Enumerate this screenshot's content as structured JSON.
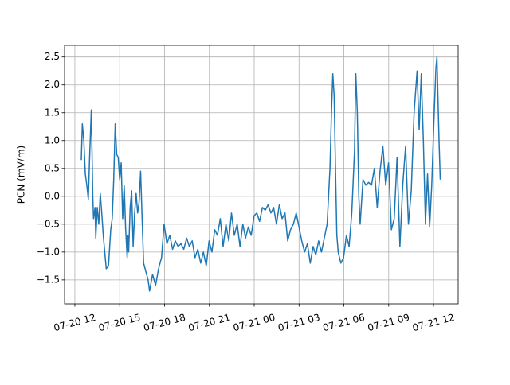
{
  "chart_data": {
    "type": "line",
    "y_label": "PCN (mV/m)",
    "color": "#1f77b4",
    "grid": true,
    "xlim": [
      11.31,
      37.65
    ],
    "ylim": [
      -1.93,
      2.71
    ],
    "xticks": [
      {
        "value": 12,
        "label": "07-20 12"
      },
      {
        "value": 15,
        "label": "07-20 15"
      },
      {
        "value": 18,
        "label": "07-20 18"
      },
      {
        "value": 21,
        "label": "07-20 21"
      },
      {
        "value": 24,
        "label": "07-21 00"
      },
      {
        "value": 27,
        "label": "07-21 03"
      },
      {
        "value": 30,
        "label": "07-21 06"
      },
      {
        "value": 33,
        "label": "07-21 09"
      },
      {
        "value": 36,
        "label": "07-21 12"
      }
    ],
    "yticks": [
      {
        "value": -1.5,
        "label": "−1.5"
      },
      {
        "value": -1.0,
        "label": "−1.0"
      },
      {
        "value": -0.5,
        "label": "−0.5"
      },
      {
        "value": 0,
        "label": "0.0"
      },
      0.5,
      {
        "value": 1.0,
        "label": "1.0"
      },
      1.5,
      {
        "value": 2.0,
        "label": "2.0"
      },
      2.5
    ],
    "x": [
      12.43,
      12.5,
      12.6,
      12.7,
      12.8,
      12.9,
      13.0,
      13.1,
      13.2,
      13.25,
      13.35,
      13.4,
      13.5,
      13.6,
      13.7,
      13.8,
      13.9,
      14.1,
      14.25,
      14.4,
      14.5,
      14.6,
      14.7,
      14.8,
      14.9,
      15.0,
      15.1,
      15.2,
      15.3,
      15.4,
      15.5,
      15.55,
      15.6,
      15.7,
      15.8,
      15.9,
      16.0,
      16.1,
      16.2,
      16.3,
      16.4,
      16.5,
      16.6,
      16.7,
      16.9,
      17.0,
      17.2,
      17.4,
      17.6,
      17.8,
      17.97,
      18.16,
      18.35,
      18.54,
      18.72,
      18.91,
      19.1,
      19.29,
      19.48,
      19.66,
      19.85,
      20.04,
      20.23,
      20.42,
      20.6,
      20.79,
      20.98,
      21.17,
      21.36,
      21.54,
      21.73,
      21.92,
      22.11,
      22.3,
      22.48,
      22.67,
      22.86,
      23.05,
      23.24,
      23.42,
      23.61,
      23.8,
      23.99,
      24.18,
      24.36,
      24.55,
      24.74,
      24.93,
      25.12,
      25.3,
      25.49,
      25.68,
      25.87,
      26.06,
      26.24,
      26.43,
      26.62,
      26.81,
      27.0,
      27.18,
      27.37,
      27.56,
      27.75,
      27.94,
      28.12,
      28.31,
      28.5,
      28.69,
      28.88,
      29.07,
      29.17,
      29.26,
      29.35,
      29.44,
      29.53,
      29.62,
      29.8,
      29.98,
      30.17,
      30.35,
      30.53,
      30.71,
      30.8,
      30.9,
      31.0,
      31.09,
      31.28,
      31.47,
      31.66,
      31.85,
      32.04,
      32.23,
      32.42,
      32.61,
      32.8,
      32.99,
      33.18,
      33.37,
      33.56,
      33.75,
      33.94,
      34.13,
      34.32,
      34.51,
      34.7,
      34.9,
      35.04,
      35.18,
      35.32,
      35.46,
      35.6,
      35.74,
      35.88,
      36.02,
      36.09,
      36.16,
      36.23,
      36.37,
      36.45
    ],
    "values": [
      0.65,
      1.3,
      1.0,
      0.4,
      0.2,
      -0.05,
      0.8,
      1.55,
      0.0,
      -0.4,
      -0.2,
      -0.75,
      -0.2,
      -0.5,
      0.05,
      -0.3,
      -0.7,
      -1.3,
      -1.25,
      -0.6,
      -0.4,
      0.3,
      1.3,
      0.75,
      0.7,
      0.3,
      0.6,
      -0.4,
      0.2,
      -0.6,
      -1.1,
      -0.7,
      -1.0,
      -0.2,
      0.1,
      -0.9,
      -0.3,
      0.05,
      -0.3,
      -0.1,
      0.45,
      -0.4,
      -1.2,
      -1.3,
      -1.5,
      -1.7,
      -1.4,
      -1.6,
      -1.3,
      -1.1,
      -0.5,
      -0.85,
      -0.7,
      -0.95,
      -0.8,
      -0.9,
      -0.85,
      -0.95,
      -0.75,
      -0.9,
      -0.8,
      -1.1,
      -0.95,
      -1.2,
      -1.0,
      -1.25,
      -0.8,
      -1.0,
      -0.6,
      -0.7,
      -0.4,
      -0.9,
      -0.5,
      -0.8,
      -0.3,
      -0.7,
      -0.5,
      -0.9,
      -0.5,
      -0.75,
      -0.55,
      -0.7,
      -0.35,
      -0.3,
      -0.45,
      -0.2,
      -0.25,
      -0.15,
      -0.3,
      -0.2,
      -0.5,
      -0.15,
      -0.4,
      -0.3,
      -0.8,
      -0.6,
      -0.5,
      -0.3,
      -0.55,
      -0.8,
      -1.0,
      -0.85,
      -1.2,
      -0.9,
      -1.05,
      -0.8,
      -1.0,
      -0.75,
      -0.5,
      0.5,
      1.5,
      2.2,
      1.8,
      0.5,
      -0.7,
      -1.0,
      -1.2,
      -1.1,
      -0.7,
      -0.9,
      -0.3,
      0.8,
      2.2,
      1.5,
      0.0,
      -0.5,
      0.3,
      0.2,
      0.25,
      0.2,
      0.5,
      -0.2,
      0.45,
      0.9,
      0.2,
      0.6,
      -0.6,
      -0.4,
      0.7,
      -0.9,
      0.2,
      0.9,
      -0.5,
      0.1,
      1.5,
      2.25,
      1.2,
      2.2,
      1.0,
      -0.5,
      0.4,
      -0.55,
      0.2,
      1.3,
      1.8,
      2.3,
      2.5,
      1.0,
      0.3
    ]
  }
}
